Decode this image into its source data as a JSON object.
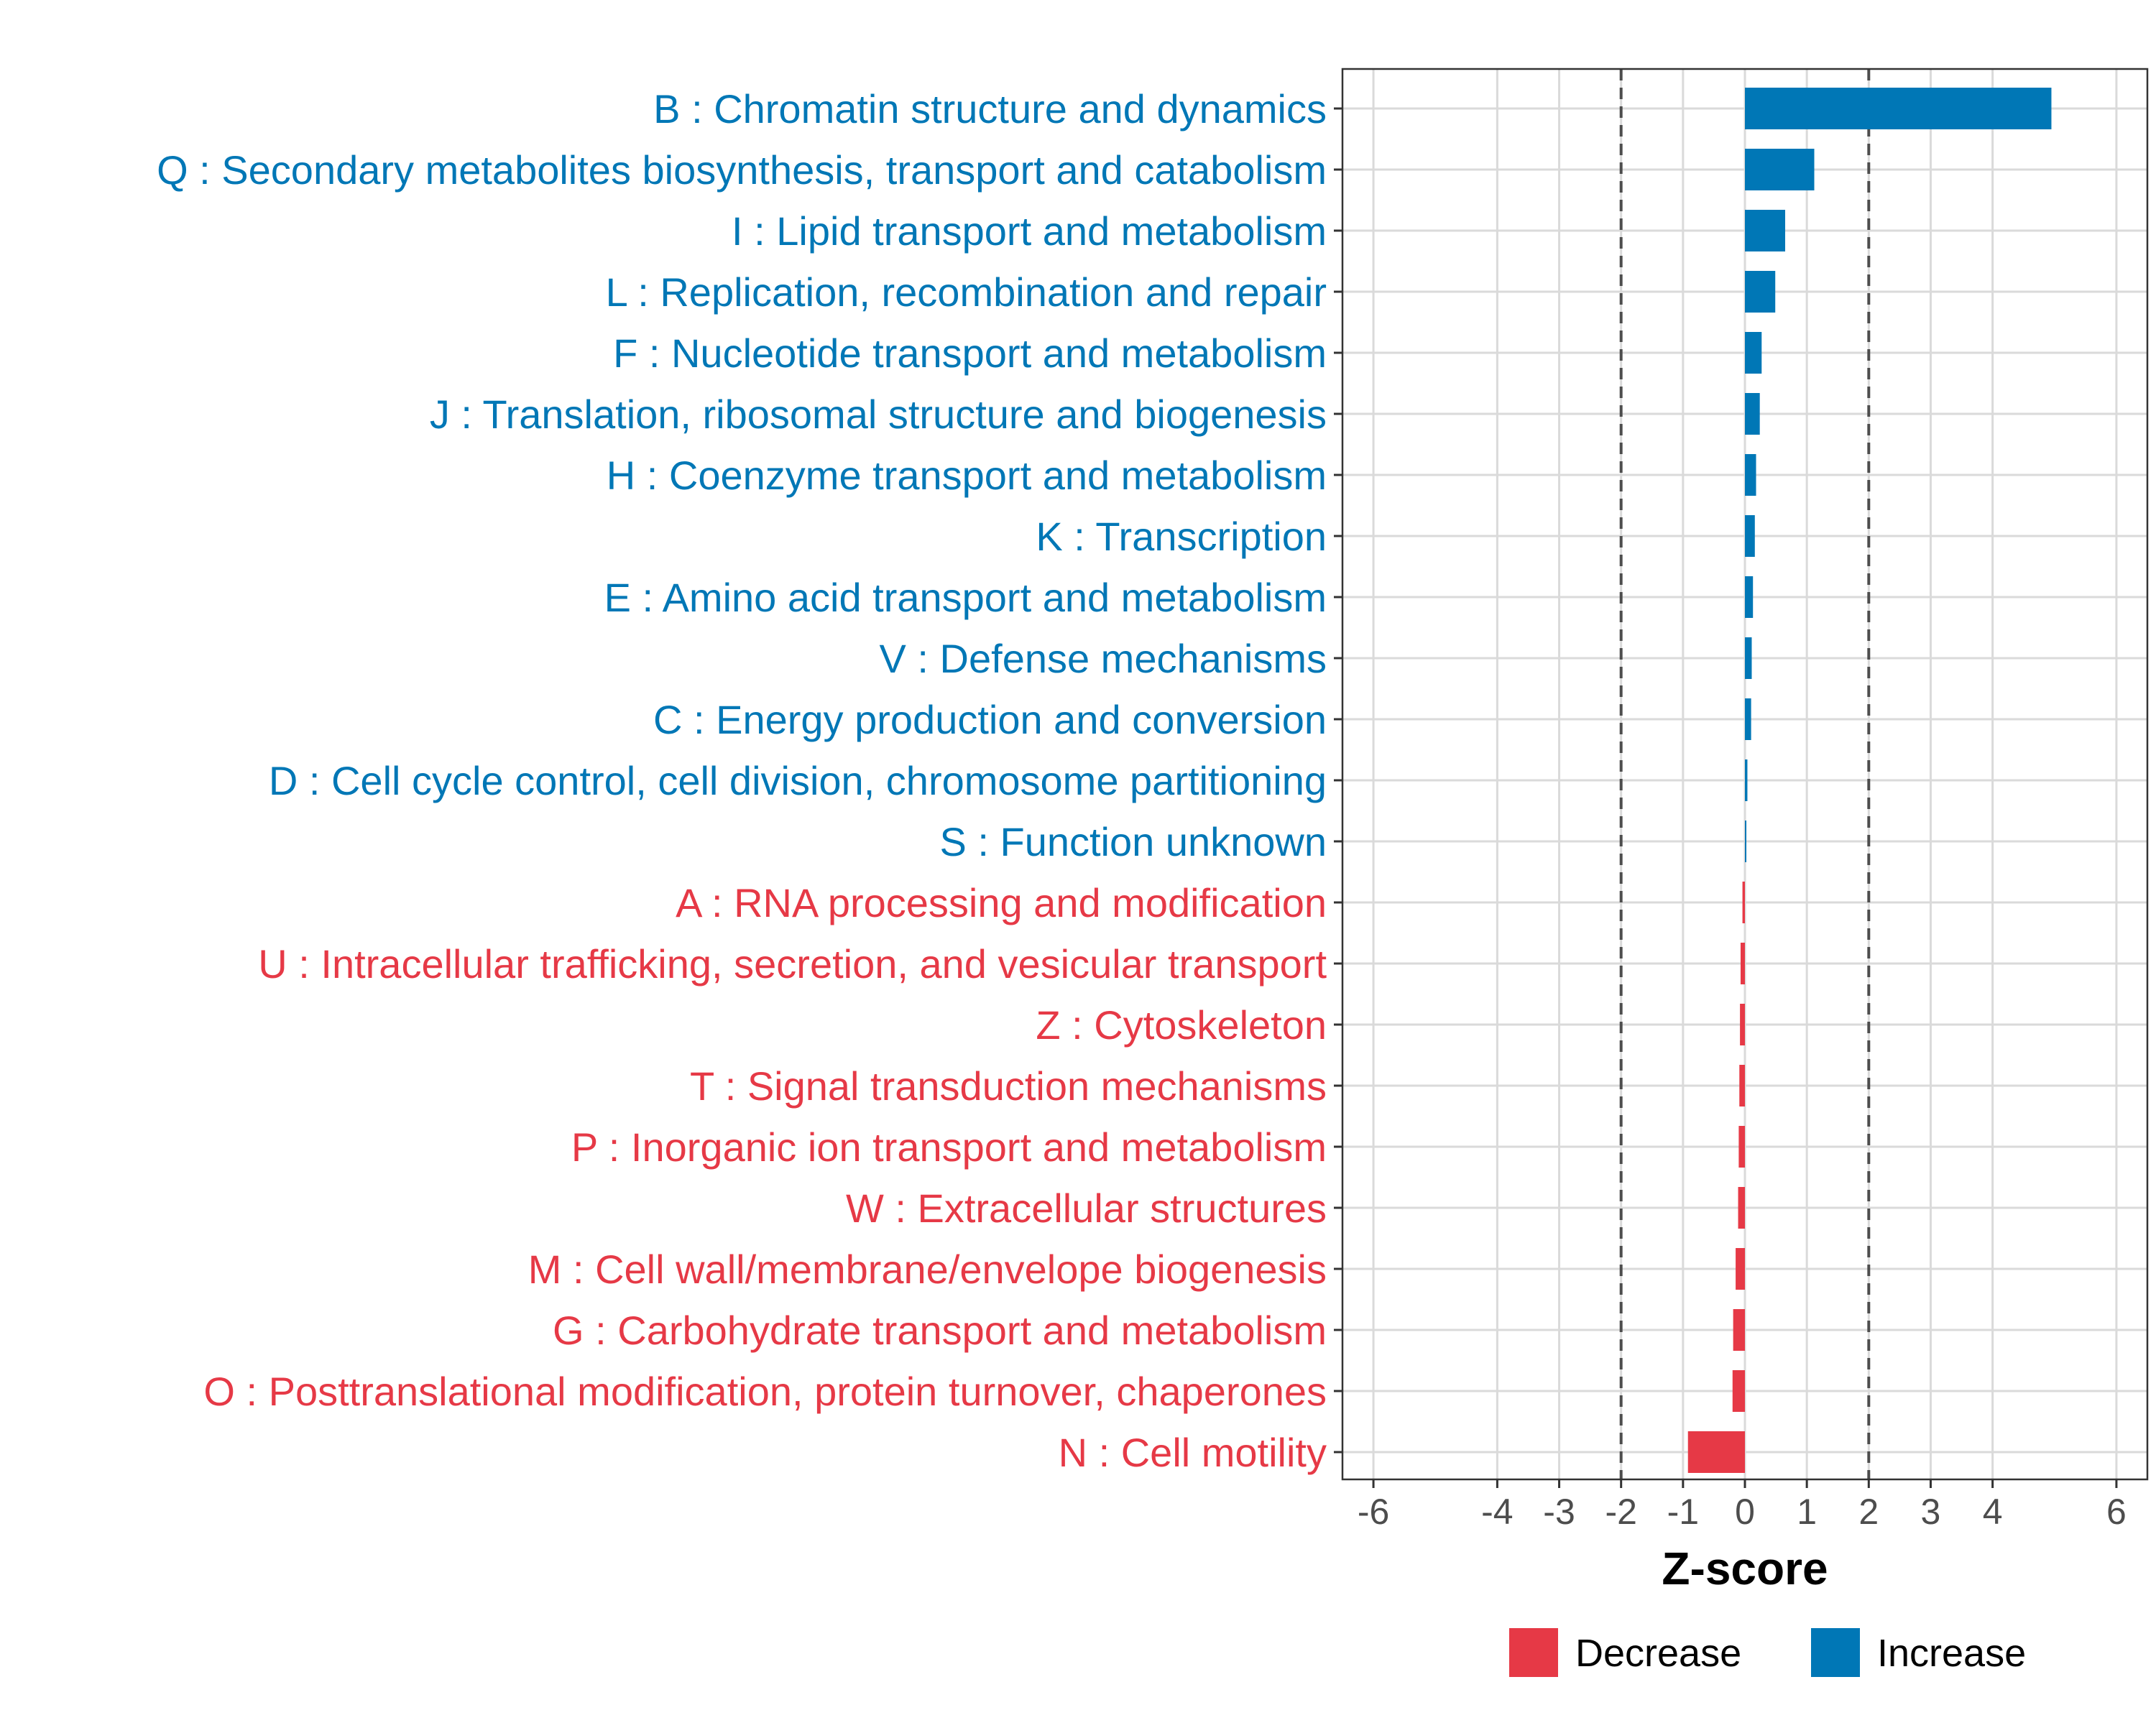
{
  "chart_data": {
    "type": "bar",
    "orientation": "horizontal",
    "xlabel": "Z-score",
    "xlim": [
      -6.5,
      6.5
    ],
    "x_ticks": [
      -6,
      -4,
      -3,
      -2,
      -1,
      0,
      1,
      2,
      3,
      4,
      6
    ],
    "threshold_lines": [
      -2,
      2
    ],
    "grid": true,
    "legend_position": "bottom",
    "colors": {
      "Decrease": "#E63946",
      "Increase": "#0077B6"
    },
    "legend": [
      {
        "name": "Decrease",
        "color": "#E63946"
      },
      {
        "name": "Increase",
        "color": "#0077B6"
      }
    ],
    "categories": [
      "B : Chromatin structure and dynamics",
      "Q : Secondary metabolites biosynthesis, transport and catabolism",
      "I : Lipid transport and metabolism",
      "L : Replication, recombination and repair",
      "F : Nucleotide transport and metabolism",
      "J : Translation, ribosomal structure and biogenesis",
      "H : Coenzyme transport and metabolism",
      "K : Transcription",
      "E : Amino acid transport and metabolism",
      "V : Defense mechanisms",
      "C : Energy production and conversion",
      "D : Cell cycle control, cell division, chromosome partitioning",
      "S : Function unknown",
      "A : RNA processing and modification",
      "U : Intracellular trafficking, secretion, and vesicular transport",
      "Z : Cytoskeleton",
      "T : Signal transduction mechanisms",
      "P : Inorganic ion transport and metabolism",
      "W : Extracellular structures",
      "M : Cell wall/membrane/envelope biogenesis",
      "G : Carbohydrate transport and metabolism",
      "O : Posttranslational modification, protein turnover, chaperones",
      "N : Cell motility"
    ],
    "values": [
      4.95,
      1.12,
      0.65,
      0.49,
      0.27,
      0.24,
      0.18,
      0.16,
      0.13,
      0.11,
      0.1,
      0.04,
      0.02,
      -0.04,
      -0.07,
      -0.08,
      -0.09,
      -0.1,
      -0.11,
      -0.15,
      -0.19,
      -0.2,
      -0.92
    ],
    "groups": [
      "Increase",
      "Increase",
      "Increase",
      "Increase",
      "Increase",
      "Increase",
      "Increase",
      "Increase",
      "Increase",
      "Increase",
      "Increase",
      "Increase",
      "Increase",
      "Decrease",
      "Decrease",
      "Decrease",
      "Decrease",
      "Decrease",
      "Decrease",
      "Decrease",
      "Decrease",
      "Decrease",
      "Decrease"
    ]
  }
}
